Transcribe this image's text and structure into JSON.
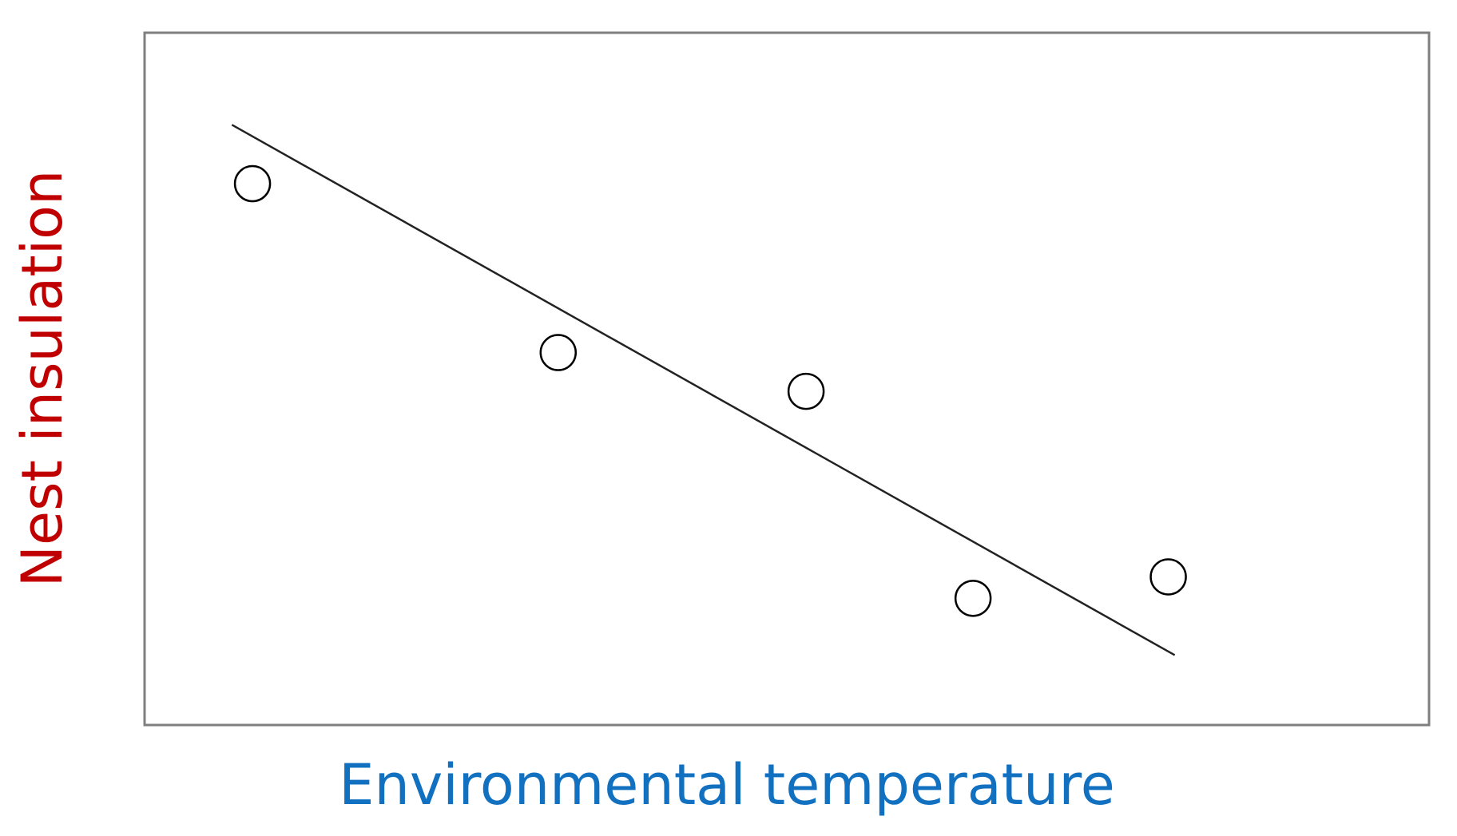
{
  "chart_data": {
    "type": "scatter",
    "xlabel": "Environmental temperature",
    "ylabel": "Nest insulation",
    "xlabel_color": "#1170c0",
    "ylabel_color": "#c00000",
    "x": [
      8.4,
      32.2,
      51.5,
      64.5,
      79.7
    ],
    "values": [
      78.2,
      53.8,
      48.2,
      18.3,
      21.4
    ],
    "color": "#000000",
    "trendline": {
      "x": [
        6.8,
        80.2
      ],
      "values": [
        86.7,
        10.1
      ],
      "color": "#222222"
    },
    "xlim": [
      0,
      100
    ],
    "ylim": [
      0,
      100
    ]
  }
}
